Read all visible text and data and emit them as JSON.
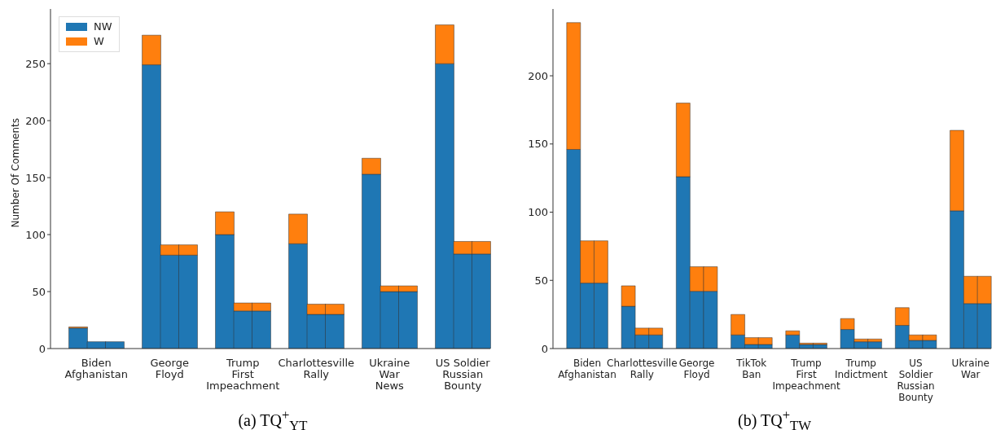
{
  "chart_data": [
    {
      "type": "bar",
      "title": "(a) TQ$^{+}$$_{YT}$",
      "ylabel": "Number Of Comments",
      "stacked": true,
      "legend": "top left",
      "categories": [
        null,
        null,
        "Biden\nAfghanistan",
        null,
        null,
        null,
        "George\nFloyd",
        null,
        null,
        null,
        "Trump\nFirst\nImpeachment",
        null,
        null,
        null,
        "Charlottesville\nRally",
        null,
        null,
        null,
        "Ukraine\nWar\nNews",
        null,
        null,
        null,
        "US Soldier\nRussian\nBounty",
        null
      ],
      "ylim": [
        0,
        298
      ],
      "yticks": [
        0,
        50,
        100,
        150,
        200,
        250
      ],
      "series": [
        {
          "name": "NW",
          "color": "#1f77b4",
          "values": [
            null,
            18,
            6,
            6,
            null,
            249,
            82,
            82,
            null,
            100,
            33,
            33,
            null,
            92,
            30,
            30,
            null,
            153,
            50,
            50,
            null,
            250,
            83,
            83
          ]
        },
        {
          "name": "W",
          "color": "#ff7f0e",
          "values": [
            null,
            1,
            0,
            0,
            null,
            26,
            9,
            9,
            null,
            20,
            7,
            7,
            null,
            26,
            9,
            9,
            null,
            14,
            5,
            5,
            null,
            34,
            11,
            11
          ]
        }
      ]
    },
    {
      "type": "bar",
      "title": "(b) TQ$^{+}$$_{TW}$",
      "stacked": true,
      "categories": [
        null,
        null,
        "Biden\nAfghanistan",
        null,
        null,
        null,
        "Charlottesville\nRally",
        null,
        null,
        null,
        "George\nFloyd",
        null,
        null,
        null,
        "TikTok\nBan",
        null,
        null,
        null,
        "Trump\nFirst\nImpeachment",
        null,
        null,
        null,
        "Trump\nIndictment",
        null,
        null,
        null,
        "US\nSoldier\nRussian\nBounty",
        null,
        null,
        null,
        "Ukraine\nWar",
        null
      ],
      "ylim": [
        0,
        249
      ],
      "yticks": [
        0,
        50,
        100,
        150,
        200
      ],
      "series": [
        {
          "color": "#1f77b4",
          "values": [
            null,
            146,
            48,
            48,
            null,
            31,
            10,
            10,
            null,
            126,
            42,
            42,
            null,
            10,
            3,
            3,
            null,
            10,
            3,
            3,
            null,
            14,
            5,
            5,
            null,
            17,
            6,
            6,
            null,
            101,
            33,
            33
          ]
        },
        {
          "color": "#ff7f0e",
          "values": [
            null,
            93,
            31,
            31,
            null,
            15,
            5,
            5,
            null,
            54,
            18,
            18,
            null,
            15,
            5,
            5,
            null,
            3,
            1,
            1,
            null,
            8,
            2,
            2,
            null,
            13,
            4,
            4,
            null,
            59,
            20,
            20
          ]
        }
      ]
    }
  ]
}
